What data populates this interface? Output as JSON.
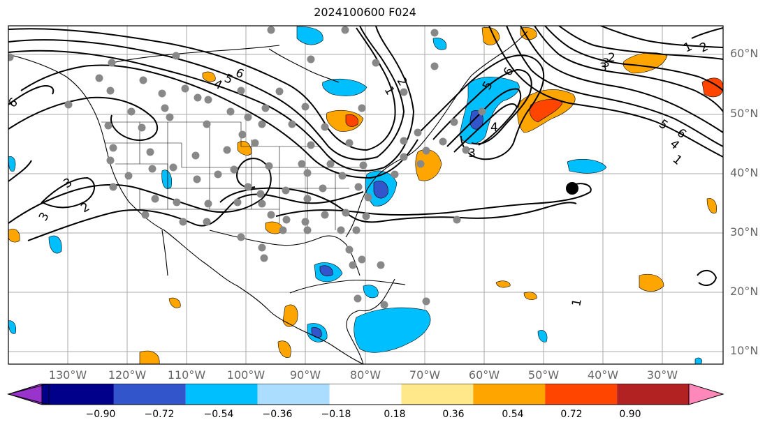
{
  "title": "2024100600 F024",
  "lat_labels": [
    "60°N",
    "50°N",
    "40°N",
    "30°N",
    "20°N",
    "10°N"
  ],
  "lon_labels": [
    "130°W",
    "120°W",
    "110°W",
    "100°W",
    "90°W",
    "80°W",
    "70°W",
    "60°W",
    "50°W",
    "40°W",
    "30°W"
  ],
  "colorbar": {
    "colors": [
      "#9933cc",
      "#00008b",
      "#3355cc",
      "#00bfff",
      "#aaddff",
      "#ffffff",
      "#ffe88a",
      "#ffa500",
      "#ff4500",
      "#b22222",
      "#ff88bb"
    ],
    "ticks": [
      "−0.90",
      "−0.72",
      "−0.54",
      "−0.36",
      "−0.18",
      "0.18",
      "0.36",
      "0.54",
      "0.72",
      "0.90"
    ]
  },
  "contour_labels": [
    "6",
    "5",
    "4",
    "3",
    "2",
    "1",
    "6",
    "5",
    "4",
    "3",
    "2",
    "1",
    "6",
    "5",
    "4",
    "3",
    "2",
    "1",
    "3",
    "2",
    "3",
    "1",
    "6"
  ],
  "legend_colors": {
    "positive": "#ffa500",
    "negative": "#00bfff",
    "station": "#888888"
  }
}
